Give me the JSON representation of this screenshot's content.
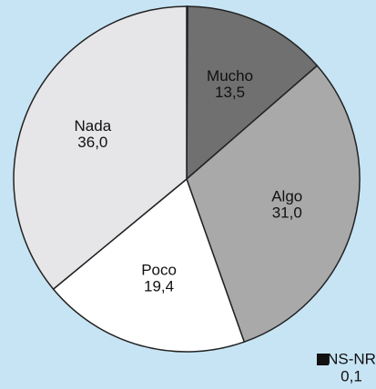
{
  "chart_data": {
    "type": "pie",
    "categories": [
      "NS-NR",
      "Mucho",
      "Algo",
      "Poco",
      "Nada"
    ],
    "values": [
      0.1,
      13.5,
      31.0,
      19.4,
      36.0
    ],
    "value_labels": [
      "0,1",
      "13,5",
      "31,0",
      "19,4",
      "36,0"
    ],
    "colors": [
      "#111111",
      "#707070",
      "#a9a9a9",
      "#ffffff",
      "#e6e6e8"
    ]
  }
}
